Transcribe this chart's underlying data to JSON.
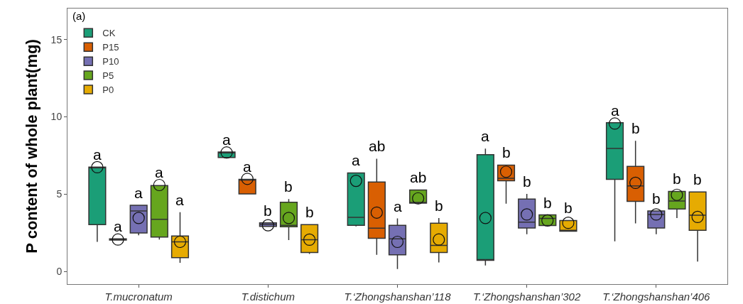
{
  "chart_data": {
    "type": "box",
    "ylabel": "P content of whole plant(mg)",
    "annotations": [
      "(a)"
    ],
    "categories": [
      "T.mucronatum",
      "T.distichum",
      "T.‘Zhongshanshan’118",
      "T.‘Zhongshanshan’302",
      "T.‘Zhongshanshan’406"
    ],
    "ylim": [
      -0.8,
      17
    ],
    "yticks": [
      0,
      5,
      10,
      15
    ],
    "grid": false,
    "legend": "top left",
    "marker": "circle",
    "series": [
      {
        "name": "CK",
        "color": "#1b9e77",
        "value_labels": [
          "a",
          "a",
          "a",
          "a",
          "a"
        ],
        "boxes": [
          {
            "low": 1.93,
            "q1": 3.04,
            "median": 6.73,
            "q3": 6.76,
            "high": 6.76,
            "mean": 6.75
          },
          {
            "low": 7.38,
            "q1": 7.38,
            "median": 7.68,
            "q3": 7.73,
            "high": 7.73,
            "mean": 7.7
          },
          {
            "low": 2.93,
            "q1": 3.0,
            "median": 3.51,
            "q3": 6.38,
            "high": 6.38,
            "mean": 5.87
          },
          {
            "low": 0.4,
            "q1": 0.74,
            "median": 0.76,
            "q3": 7.56,
            "high": 7.95,
            "mean": 3.47
          },
          {
            "low": 1.96,
            "q1": 5.97,
            "median": 7.96,
            "q3": 9.63,
            "high": 9.63,
            "mean": 9.57
          }
        ]
      },
      {
        "name": "P15",
        "color": "#d95f02",
        "value_labels": [
          "a",
          "a",
          "ab",
          "b",
          "b"
        ],
        "boxes": [
          {
            "low": 2.04,
            "q1": 2.04,
            "median": 2.08,
            "q3": 2.12,
            "high": 2.12,
            "mean": 2.08
          },
          {
            "low": 5.0,
            "q1": 5.03,
            "median": 5.97,
            "q3": 5.97,
            "high": 5.97,
            "mean": 6.0
          },
          {
            "low": 1.09,
            "q1": 2.16,
            "median": 2.81,
            "q3": 5.8,
            "high": 7.3,
            "mean": 3.82
          },
          {
            "low": 4.39,
            "q1": 5.87,
            "median": 6.04,
            "q3": 6.89,
            "high": 6.89,
            "mean": 6.46
          },
          {
            "low": 3.12,
            "q1": 4.54,
            "median": 5.54,
            "q3": 6.8,
            "high": 8.45,
            "mean": 5.74
          }
        ]
      },
      {
        "name": "P10",
        "color": "#7570b3",
        "value_labels": [
          "a",
          "b",
          "a",
          "b",
          "b"
        ],
        "boxes": [
          {
            "low": 2.35,
            "q1": 2.5,
            "median": 3.93,
            "q3": 4.29,
            "high": 4.29,
            "mean": 3.47
          },
          {
            "low": 2.93,
            "q1": 2.93,
            "median": 3.05,
            "q3": 3.16,
            "high": 3.16,
            "mean": 3.0
          },
          {
            "low": 0.17,
            "q1": 1.09,
            "median": 2.13,
            "q3": 3.0,
            "high": 3.44,
            "mean": 1.93
          },
          {
            "low": 2.42,
            "q1": 2.82,
            "median": 3.2,
            "q3": 4.69,
            "high": 5.03,
            "mean": 3.7
          },
          {
            "low": 2.42,
            "q1": 2.82,
            "median": 3.7,
            "q3": 3.93,
            "high": 3.93,
            "mean": 3.7
          }
        ]
      },
      {
        "name": "P5",
        "color": "#66a61e",
        "value_labels": [
          "a",
          "b",
          "ab",
          "b",
          "b"
        ],
        "boxes": [
          {
            "low": 2.08,
            "q1": 2.24,
            "median": 3.39,
            "q3": 5.57,
            "high": 5.57,
            "mean": 5.6
          },
          {
            "low": 2.05,
            "q1": 2.9,
            "median": 3.0,
            "q3": 4.49,
            "high": 4.69,
            "mean": 3.47
          },
          {
            "low": 4.36,
            "q1": 4.43,
            "median": 4.46,
            "q3": 5.28,
            "high": 5.28,
            "mean": 4.74
          },
          {
            "low": 2.98,
            "q1": 2.98,
            "median": 3.44,
            "q3": 3.67,
            "high": 3.67,
            "mean": 3.31
          },
          {
            "low": 3.47,
            "q1": 4.05,
            "median": 4.57,
            "q3": 5.19,
            "high": 5.19,
            "mean": 4.97
          }
        ]
      },
      {
        "name": "P0",
        "color": "#e6ab02",
        "value_labels": [
          "a",
          "b",
          "b",
          "b",
          "b"
        ],
        "boxes": [
          {
            "low": 0.58,
            "q1": 0.91,
            "median": 1.93,
            "q3": 2.31,
            "high": 3.85,
            "mean": 1.93
          },
          {
            "low": 1.15,
            "q1": 1.24,
            "median": 2.07,
            "q3": 3.04,
            "high": 3.04,
            "mean": 2.07
          },
          {
            "low": 0.6,
            "q1": 1.24,
            "median": 1.7,
            "q3": 3.13,
            "high": 3.47,
            "mean": 2.08
          },
          {
            "low": 2.62,
            "q1": 2.62,
            "median": 2.67,
            "q3": 3.31,
            "high": 3.31,
            "mean": 3.16
          },
          {
            "low": 0.66,
            "q1": 2.67,
            "median": 3.65,
            "q3": 5.15,
            "high": 5.15,
            "mean": 3.54
          }
        ]
      }
    ]
  }
}
